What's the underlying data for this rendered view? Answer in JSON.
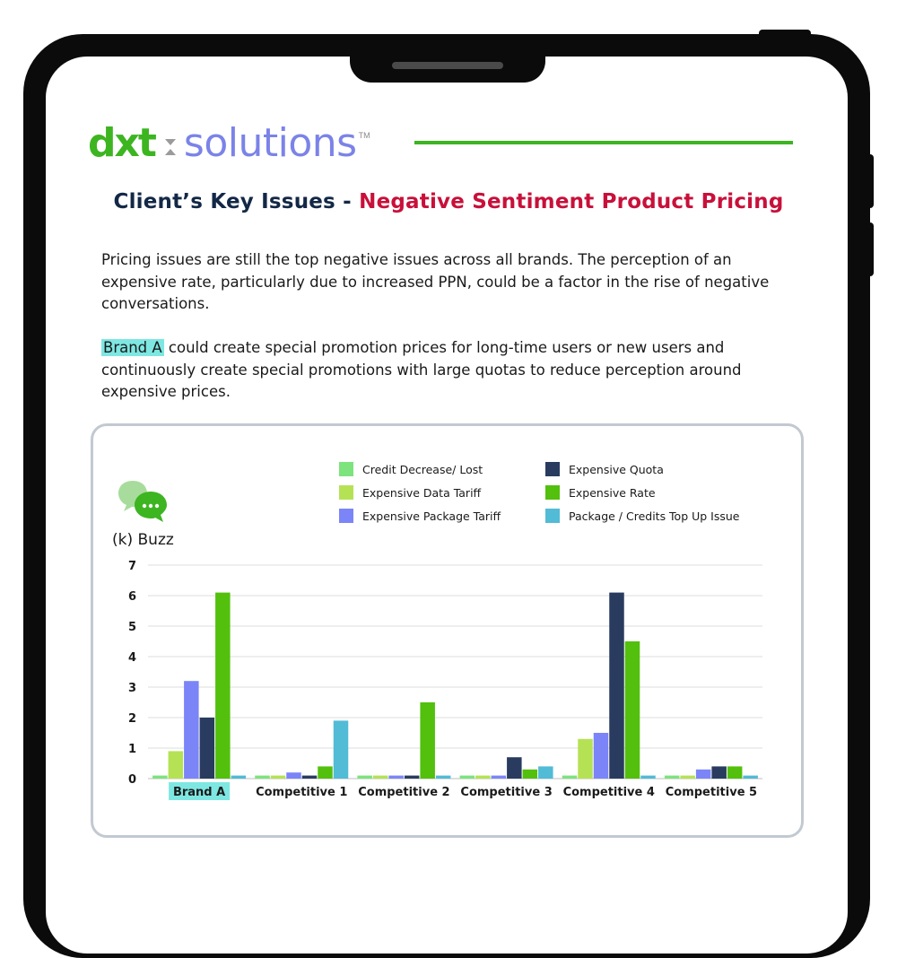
{
  "logo": {
    "brand": "dxt",
    "product": "solutions",
    "tm": "TM"
  },
  "heading": {
    "part1": "Client’s Key Issues - ",
    "part2": "Negative Sentiment Product Pricing"
  },
  "paragraph1": "Pricing issues are still the top negative issues across all brands. The perception of an expensive rate, particularly due to increased PPN, could be a factor in the rise of negative conversations.",
  "paragraph2": {
    "highlight": "Brand A",
    "rest": " could create special promotion prices for long-time users or new users and continuously create special promotions with large quotas to reduce perception around expensive prices."
  },
  "icons": {
    "chat": "chat-bubbles-icon"
  },
  "colors": {
    "green_brand": "#3cb521",
    "purple_brand": "#7b83e8",
    "heading_dark": "#132846",
    "heading_red": "#c8103a",
    "highlight": "#7ee7e2"
  },
  "chart_data": {
    "type": "bar",
    "ylabel": "(k) Buzz",
    "ylim": [
      0,
      7
    ],
    "yticks": [
      0,
      1,
      2,
      3,
      4,
      5,
      6,
      7
    ],
    "grid": true,
    "legend_position": "top-right",
    "highlighted_category": "Brand A",
    "categories": [
      "Brand A",
      "Competitive 1",
      "Competitive 2",
      "Competitive 3",
      "Competitive 4",
      "Competitive 5"
    ],
    "series": [
      {
        "name": "Credit Decrease/ Lost",
        "color": "#7de37d",
        "values": [
          0.1,
          0.1,
          0.1,
          0.1,
          0.1,
          0.1
        ]
      },
      {
        "name": "Expensive Data Tariff",
        "color": "#b5e255",
        "values": [
          0.9,
          0.1,
          0.1,
          0.1,
          1.3,
          0.1
        ]
      },
      {
        "name": "Expensive Package Tariff",
        "color": "#7b85f7",
        "values": [
          3.2,
          0.2,
          0.1,
          0.1,
          1.5,
          0.3
        ]
      },
      {
        "name": "Expensive Quota",
        "color": "#293c60",
        "values": [
          2.0,
          0.1,
          0.1,
          0.7,
          6.1,
          0.4
        ]
      },
      {
        "name": "Expensive Rate",
        "color": "#52c00d",
        "values": [
          6.1,
          0.4,
          2.5,
          0.3,
          4.5,
          0.4
        ]
      },
      {
        "name": "Package / Credits Top Up Issue",
        "color": "#52bbd6",
        "values": [
          0.1,
          1.9,
          0.1,
          0.4,
          0.1,
          0.1
        ]
      }
    ]
  }
}
